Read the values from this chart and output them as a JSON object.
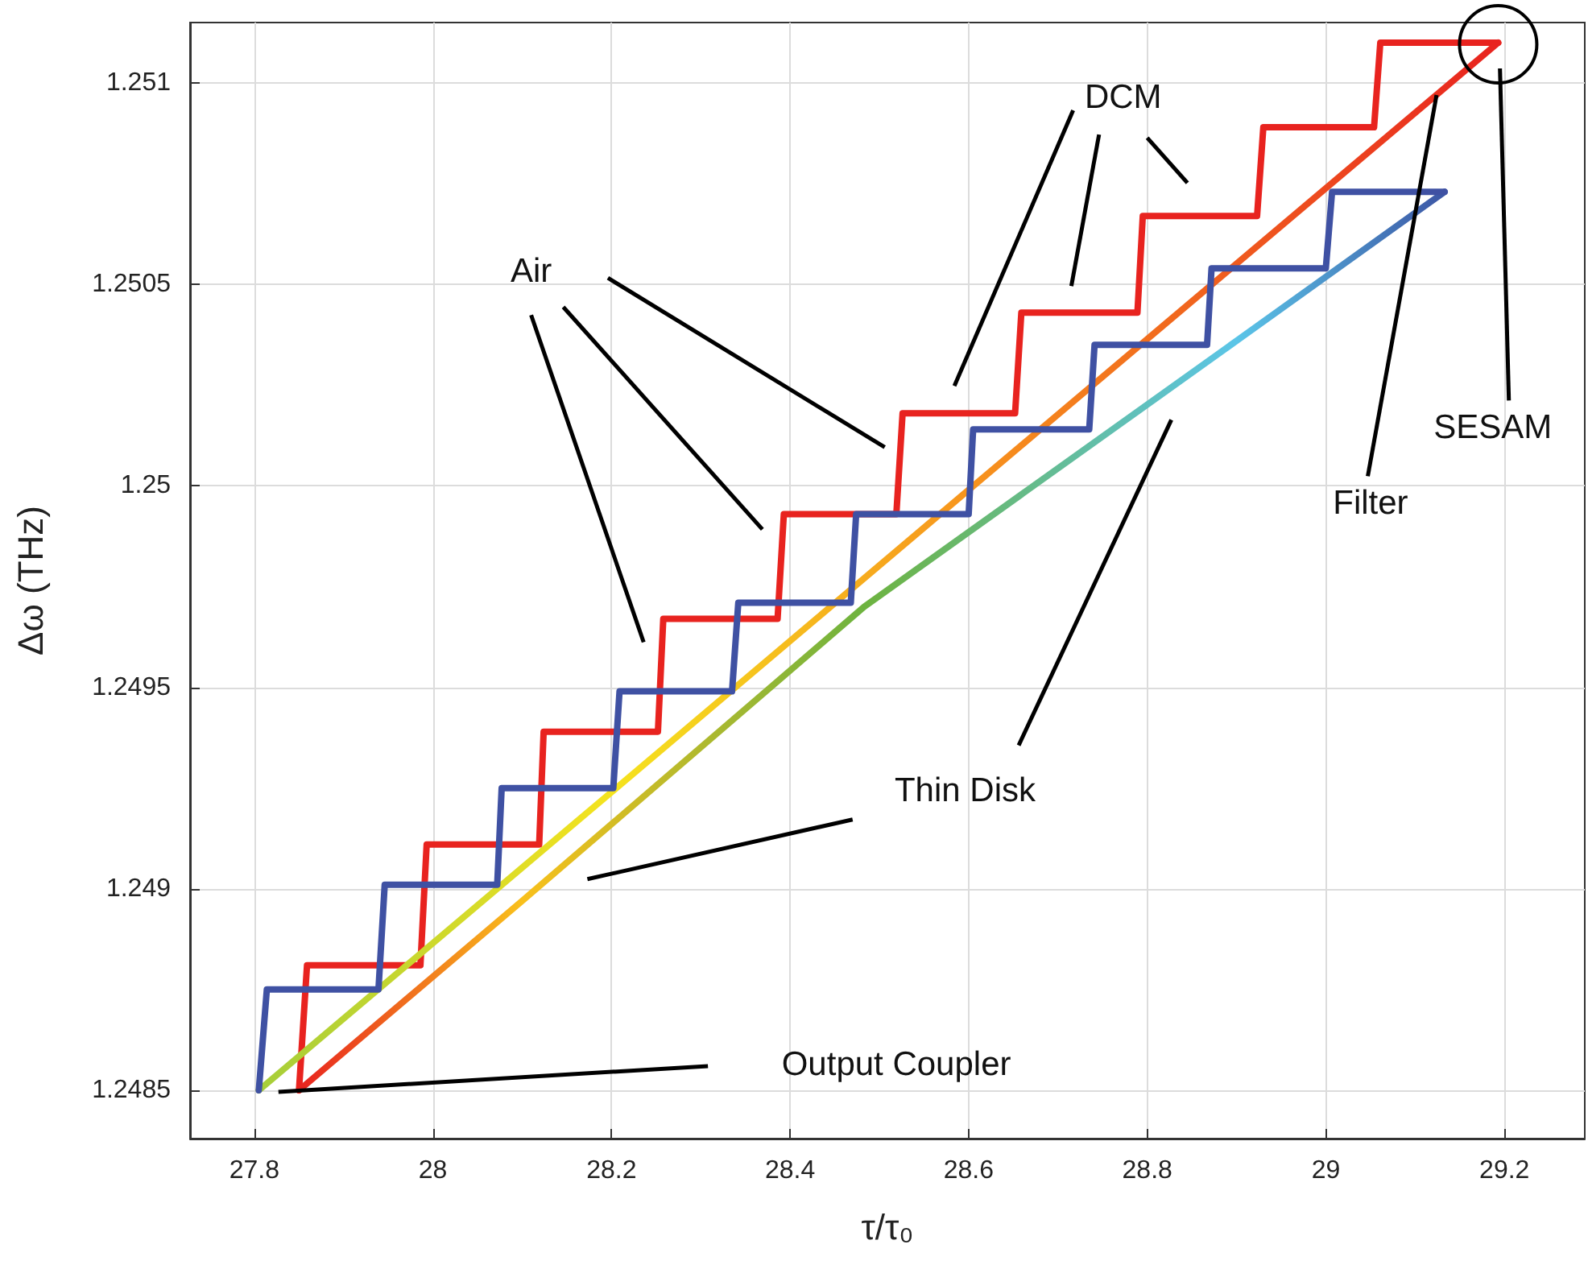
{
  "chart_data": {
    "type": "line",
    "xlabel": "τ/τ₀",
    "ylabel": "Δω (THz)",
    "xlim": [
      27.728,
      29.29
    ],
    "ylim": [
      1.24838,
      1.25115
    ],
    "xticks": [
      27.8,
      28,
      28.2,
      28.4,
      28.6,
      28.8,
      29,
      29.2
    ],
    "yticks": [
      1.2485,
      1.249,
      1.2495,
      1.25,
      1.2505,
      1.251
    ],
    "grid": true,
    "marker": "none",
    "line_style": "solid",
    "series": [
      {
        "color": "#e8231f",
        "x": [
          27.85,
          27.859,
          27.986,
          27.993,
          28.119,
          28.124,
          28.252,
          28.258,
          28.386,
          28.393,
          28.519,
          28.526,
          28.652,
          28.659,
          28.789,
          28.795,
          28.923,
          28.93,
          29.054,
          29.061,
          29.193
        ],
        "values": [
          1.2485,
          1.24881,
          1.24881,
          1.24911,
          1.24911,
          1.24939,
          1.24939,
          1.24967,
          1.24967,
          1.24993,
          1.24993,
          1.25018,
          1.25018,
          1.25043,
          1.25043,
          1.25067,
          1.25067,
          1.25089,
          1.25089,
          1.2511,
          1.2511
        ]
      },
      {
        "colors": [
          "#a6ce39",
          "#f5e31e",
          "#f7941d",
          "#e8231f"
        ],
        "x": [
          27.805,
          28.2,
          28.6,
          29.193
        ],
        "values": [
          1.2485,
          1.24924,
          1.24999,
          1.2511
        ]
      },
      {
        "colors": [
          "#e8231f",
          "#f9c01b",
          "#6db33f",
          "#5bc5e8",
          "#3c56a5"
        ],
        "x": [
          27.85,
          28.1,
          28.483,
          28.9,
          29.133
        ],
        "values": [
          1.2485,
          1.24897,
          1.2497,
          1.25036,
          1.25073
        ]
      },
      {
        "color": "#3f51a3",
        "x": [
          27.805,
          27.814,
          27.939,
          27.946,
          28.072,
          28.077,
          28.202,
          28.209,
          28.335,
          28.342,
          28.468,
          28.474,
          28.6,
          28.605,
          28.735,
          28.741,
          28.867,
          28.872,
          29.0,
          29.007,
          29.133
        ],
        "values": [
          1.2485,
          1.24875,
          1.24875,
          1.24901,
          1.24901,
          1.24925,
          1.24925,
          1.24949,
          1.24949,
          1.24971,
          1.24971,
          1.24993,
          1.24993,
          1.25014,
          1.25014,
          1.25035,
          1.25035,
          1.25054,
          1.25054,
          1.25073,
          1.25073
        ]
      }
    ],
    "annotations": [
      "DCM",
      "Air",
      "Thin Disk",
      "Output Coupler",
      {
        "text": "Filter",
        "x": 29.124,
        "y": 1.25097
      },
      "SESAM"
    ]
  }
}
